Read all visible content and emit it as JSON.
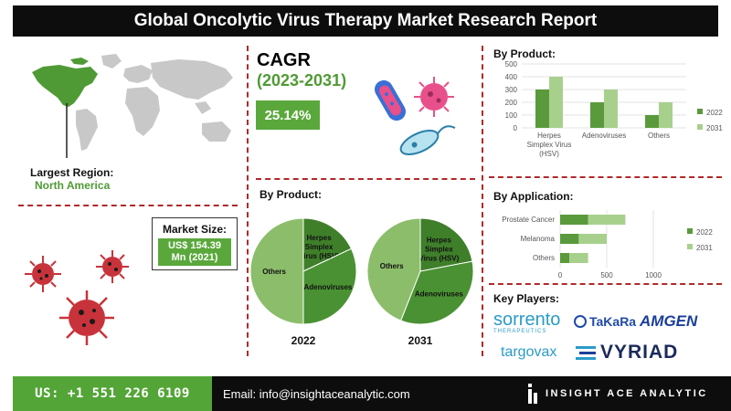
{
  "title": "Global Oncolytic Virus Therapy Market Research Report",
  "cagr": {
    "heading": "CAGR",
    "period": "(2023-2031)",
    "value": "25.14%"
  },
  "largest_region": {
    "label": "Largest Region:",
    "value": "North America"
  },
  "market_size": {
    "label": "Market Size:",
    "value_line1": "US$ 154.39",
    "value_line2": "Mn (2021)"
  },
  "colors": {
    "dark_green": "#5a9a3c",
    "light_green": "#a8d08d",
    "pie_light": "#8cbd6b",
    "pie_dark": "#3f7f2a",
    "accent_red": "#b02a2a",
    "virus_red": "#c8333b"
  },
  "pies": {
    "heading": "By Product:",
    "charts": [
      {
        "year": "2022",
        "slices": [
          {
            "label": "Herpes Simplex Virus (HSV)",
            "value": 18
          },
          {
            "label": "Adenoviruses",
            "value": 32
          },
          {
            "label": "Others",
            "value": 50
          }
        ]
      },
      {
        "year": "2031",
        "slices": [
          {
            "label": "Herpes Simplex Virus (HSV)",
            "value": 22
          },
          {
            "label": "Adenoviruses",
            "value": 34
          },
          {
            "label": "Others",
            "value": 44
          }
        ]
      }
    ]
  },
  "chart_data": [
    {
      "type": "bar",
      "title": "By Product:",
      "categories": [
        "Herpes Simplex Virus (HSV)",
        "Adenoviruses",
        "Others"
      ],
      "series": [
        {
          "name": "2022",
          "values": [
            300,
            200,
            100
          ]
        },
        {
          "name": "2031",
          "values": [
            400,
            300,
            200
          ]
        }
      ],
      "ylim": [
        0,
        500
      ],
      "yticks": [
        "0",
        "100",
        "200",
        "300",
        "400",
        "500"
      ],
      "legend": "right"
    },
    {
      "type": "bar",
      "orientation": "horizontal",
      "title": "By Application:",
      "categories": [
        "Prostate Cancer",
        "Melanoma",
        "Others"
      ],
      "series": [
        {
          "name": "2022",
          "values": [
            300,
            200,
            100
          ]
        },
        {
          "name": "2031",
          "values": [
            400,
            300,
            200
          ]
        }
      ],
      "xlim": [
        0,
        1000
      ],
      "xticks": [
        "0",
        "500",
        "1000"
      ],
      "legend": "right"
    },
    {
      "type": "pie",
      "title": "By Product:",
      "xlabel": "2022",
      "categories": [
        "Herpes Simplex Virus (HSV)",
        "Adenoviruses",
        "Others"
      ],
      "values": [
        18,
        32,
        50
      ]
    },
    {
      "type": "pie",
      "title": "By Product:",
      "xlabel": "2031",
      "categories": [
        "Herpes Simplex Virus (HSV)",
        "Adenoviruses",
        "Others"
      ],
      "values": [
        22,
        34,
        44
      ]
    }
  ],
  "key_players": {
    "heading": "Key Players:",
    "sorrento": {
      "name": "sorrento",
      "sub": "THERAPEUTICS"
    },
    "takara": "TaKaRa",
    "amgen": "AMGEN",
    "targovax": "targovax",
    "vyriad": "VYRIAD"
  },
  "footer": {
    "phone": "US: +1 551 226 6109",
    "email": "Email: info@insightaceanalytic.com",
    "brand": "INSIGHT ACE ANALYTIC"
  }
}
